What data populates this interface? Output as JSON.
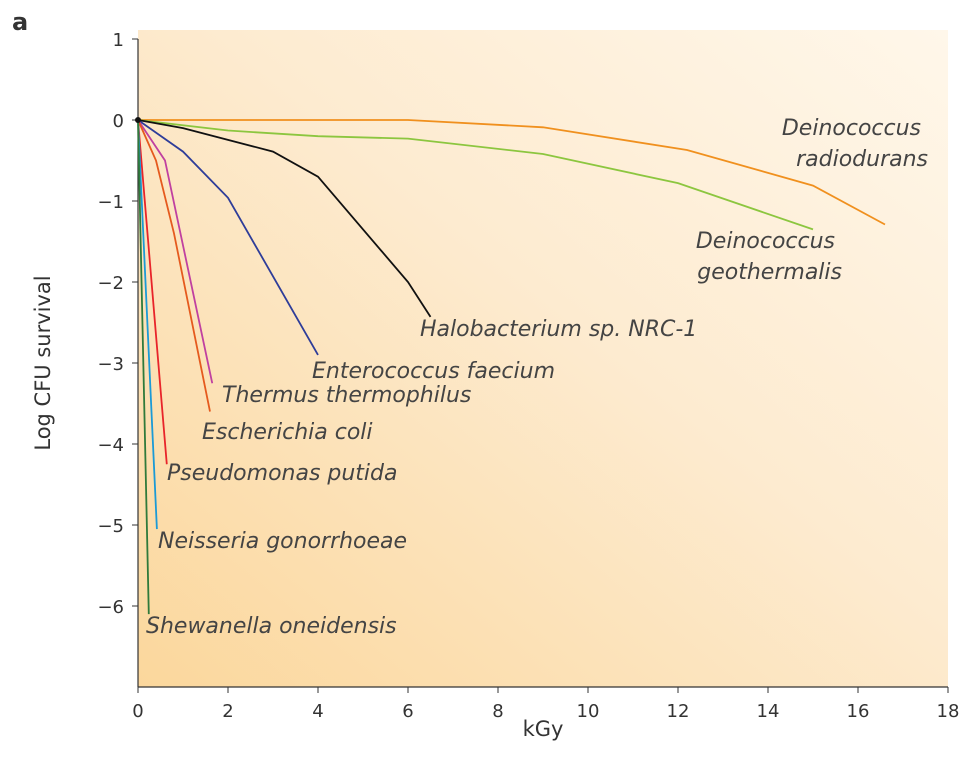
{
  "chart_data": {
    "type": "line",
    "panel_label": "a",
    "xlabel": "kGy",
    "ylabel": "Log CFU survival",
    "xlim": [
      0,
      18
    ],
    "xticks": [
      0,
      2,
      4,
      6,
      8,
      10,
      12,
      14,
      16,
      18
    ],
    "ylim": [
      -7,
      1
    ],
    "yticks": [
      1,
      0,
      {
        "value": -1,
        "label": "−1"
      },
      {
        "value": -2,
        "label": "−2"
      },
      {
        "value": -3,
        "label": "−3"
      },
      {
        "value": -4,
        "label": "−4"
      },
      {
        "value": -5,
        "label": "−5"
      },
      {
        "value": -6,
        "label": "−6"
      }
    ],
    "series": [
      {
        "name": "Deinococcus radiodurans",
        "color": "#f0901e",
        "x": [
          0,
          6,
          9,
          12.2,
          15,
          16.6
        ],
        "values": [
          0,
          0,
          -0.09,
          -0.37,
          -0.81,
          -1.29
        ]
      },
      {
        "name": "Deinococcus geothermalis",
        "color": "#8cc63f",
        "x": [
          0,
          2,
          4,
          6,
          9,
          12,
          15
        ],
        "values": [
          0,
          -0.13,
          -0.2,
          -0.23,
          -0.42,
          -0.78,
          -1.35
        ]
      },
      {
        "name": "Halobacterium sp. NRC-1",
        "color": "#111111",
        "x": [
          0,
          1,
          3,
          4,
          6,
          6.5
        ],
        "values": [
          0,
          -0.1,
          -0.39,
          -0.7,
          -2,
          -2.43
        ]
      },
      {
        "name": "Enterococcus faecium",
        "color": "#2e3d99",
        "x": [
          0,
          1,
          2,
          4
        ],
        "values": [
          0,
          -0.39,
          -0.96,
          -2.9
        ]
      },
      {
        "name": "Thermus thermophilus",
        "color": "#c040a0",
        "x": [
          0,
          0.6,
          1.65
        ],
        "values": [
          0,
          -0.5,
          -3.25
        ]
      },
      {
        "name": "Escherichia coli",
        "color": "#e55a1e",
        "x": [
          0,
          0.4,
          0.8,
          1.6
        ],
        "values": [
          0,
          -0.5,
          -1.4,
          -3.6
        ]
      },
      {
        "name": "Pseudomonas putida",
        "color": "#e8242a",
        "x": [
          0,
          0.64
        ],
        "values": [
          0,
          -4.25
        ]
      },
      {
        "name": "Neisseria gonorrhoeae",
        "color": "#1b9ad6",
        "x": [
          0,
          0.42
        ],
        "values": [
          0,
          -5.05
        ]
      },
      {
        "name": "Shewanella oneidensis",
        "color": "#2f7a3b",
        "x": [
          0,
          0.24
        ],
        "values": [
          0,
          -6.1
        ]
      }
    ]
  }
}
